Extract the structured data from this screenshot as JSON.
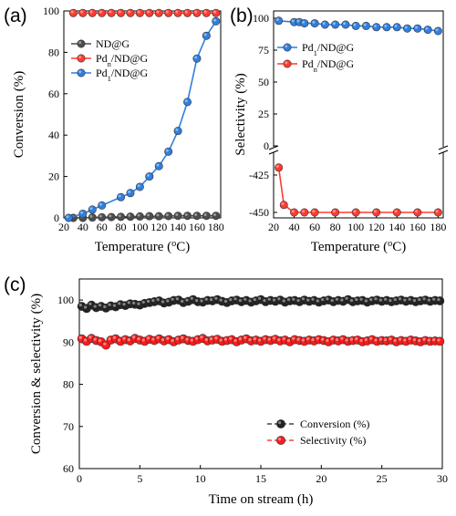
{
  "chart_data": [
    {
      "panel": "(a)",
      "type": "line",
      "xlabel": "Temperature (oC)",
      "xlabel_parts": [
        "Temperature (",
        "o",
        "C)"
      ],
      "ylabel": "Conversion (%)",
      "xlim": [
        20,
        185
      ],
      "ylim": [
        0,
        100
      ],
      "xticks": [
        20,
        40,
        60,
        80,
        100,
        120,
        140,
        160,
        180
      ],
      "yticks": [
        0,
        20,
        40,
        60,
        80,
        100
      ],
      "legend_position": "top-left",
      "series": [
        {
          "name": "ND@G",
          "legend_parts": [
            "ND@G"
          ],
          "color": "#4d4d4d",
          "x": [
            30,
            40,
            50,
            60,
            70,
            80,
            90,
            100,
            110,
            120,
            130,
            140,
            150,
            160,
            170,
            180
          ],
          "y": [
            0,
            0,
            0.2,
            0.3,
            0.4,
            0.5,
            0.6,
            0.7,
            0.8,
            0.8,
            0.9,
            1.0,
            1.0,
            1.0,
            1.0,
            1.0
          ]
        },
        {
          "name": "Pdn/ND@G",
          "legend_parts": [
            "Pd",
            "n",
            "/ND@G"
          ],
          "color": "#ff3b30",
          "x": [
            30,
            40,
            50,
            60,
            70,
            80,
            90,
            100,
            110,
            120,
            130,
            140,
            150,
            160,
            170,
            180
          ],
          "y": [
            99,
            99,
            99,
            99,
            99,
            99,
            99,
            99,
            99,
            99,
            99,
            99,
            99,
            99,
            99,
            99
          ]
        },
        {
          "name": "Pd1/ND@G",
          "legend_parts": [
            "Pd",
            "1",
            "/ND@G"
          ],
          "color": "#2f7fe0",
          "x": [
            25,
            40,
            50,
            60,
            80,
            90,
            100,
            110,
            120,
            130,
            140,
            150,
            160,
            170,
            180
          ],
          "y": [
            0,
            2,
            4,
            6,
            10,
            12,
            15,
            20,
            25,
            32,
            42,
            56,
            77,
            88,
            95
          ]
        }
      ]
    },
    {
      "panel": "(b)",
      "type": "line",
      "xlabel": "Temperature (oC)",
      "xlabel_parts": [
        "Temperature (",
        "o",
        "C)"
      ],
      "ylabel": "Selectivity (%)",
      "xlim": [
        20,
        185
      ],
      "ylim_top": [
        0,
        100
      ],
      "ylim_bottom": [
        -455,
        -415
      ],
      "axis_break": true,
      "xticks": [
        20,
        40,
        60,
        80,
        100,
        120,
        140,
        160,
        180
      ],
      "yticks": [
        100,
        75,
        50,
        25,
        0,
        -425,
        -450
      ],
      "legend_position": "upper-middle",
      "series": [
        {
          "name": "Pd1/ND@G",
          "legend_parts": [
            "Pd",
            "1",
            "/ND@G"
          ],
          "color": "#2f7fe0",
          "x": [
            25,
            40,
            45,
            50,
            60,
            70,
            80,
            90,
            100,
            110,
            120,
            130,
            140,
            150,
            160,
            170,
            180
          ],
          "y": [
            98,
            97,
            97,
            96,
            96,
            95,
            95,
            95,
            94,
            94,
            93,
            93,
            93,
            92,
            92,
            91,
            90
          ]
        },
        {
          "name": "Pdn/ND@G",
          "legend_parts": [
            "Pd",
            "n",
            "/ND@G"
          ],
          "color": "#ff3b30",
          "x": [
            25,
            30,
            40,
            50,
            60,
            80,
            100,
            120,
            140,
            160,
            180
          ],
          "y": [
            -420,
            -445,
            -450,
            -450,
            -450,
            -450,
            -450,
            -450,
            -450,
            -450,
            -450
          ]
        }
      ]
    },
    {
      "panel": "(c)",
      "type": "scatter",
      "xlabel": "Time on stream (h)",
      "ylabel": "Conversion & selectivity (%)",
      "xlim": [
        0,
        30
      ],
      "ylim": [
        60,
        105
      ],
      "xticks": [
        0,
        5,
        10,
        15,
        20,
        25,
        30
      ],
      "yticks": [
        60,
        70,
        80,
        90,
        100
      ],
      "legend_position": "bottom-right",
      "series": [
        {
          "name": "Conversion (%)",
          "legend_parts": [
            "Conversion (%)"
          ],
          "color": "#222222",
          "x": [
            0.2,
            0.6,
            1,
            1.4,
            1.8,
            2.2,
            2.6,
            3,
            3.4,
            3.8,
            4.2,
            4.6,
            5,
            5.4,
            5.8,
            6.2,
            6.6,
            7,
            7.4,
            7.8,
            8.2,
            8.6,
            9,
            9.4,
            9.8,
            10.2,
            10.6,
            11,
            11.4,
            11.8,
            12.2,
            12.6,
            13,
            13.4,
            13.8,
            14.2,
            14.6,
            15,
            15.4,
            15.8,
            16.2,
            16.6,
            17,
            17.4,
            17.8,
            18.2,
            18.6,
            19,
            19.4,
            19.8,
            20.2,
            20.6,
            21,
            21.4,
            21.8,
            22.2,
            22.6,
            23,
            23.4,
            23.8,
            24.2,
            24.6,
            25,
            25.4,
            25.8,
            26.2,
            26.6,
            27,
            27.4,
            27.8,
            28.2,
            28.6,
            29,
            29.4,
            29.8
          ],
          "y": [
            98.5,
            98,
            98.8,
            98.2,
            98.5,
            98.1,
            98.6,
            98.4,
            98.9,
            98.7,
            99.1,
            99,
            98.8,
            99.2,
            99.4,
            99.6,
            99.8,
            99.3,
            99.5,
            99.9,
            100,
            99.4,
            99.7,
            100.1,
            99.6,
            99.5,
            99.9,
            99.8,
            100.1,
            99.7,
            99.4,
            99.8,
            100,
            99.6,
            99.9,
            99.5,
            99.8,
            100.1,
            99.6,
            99.9,
            99.7,
            100,
            99.5,
            99.8,
            99.9,
            99.6,
            100,
            99.7,
            99.9,
            99.5,
            99.8,
            100,
            99.6,
            99.9,
            99.7,
            100.1,
            99.6,
            99.8,
            99.9,
            99.5,
            99.8,
            100,
            99.7,
            99.9,
            99.6,
            99.8,
            100,
            99.7,
            99.9,
            99.6,
            99.8,
            100,
            99.7,
            99.9,
            99.8
          ]
        },
        {
          "name": "Selectivity (%)",
          "legend_parts": [
            "Selectivity (%)"
          ],
          "color": "#ff1a1a",
          "x": [
            0.2,
            0.6,
            1,
            1.4,
            1.8,
            2.2,
            2.6,
            3,
            3.4,
            3.8,
            4.2,
            4.6,
            5,
            5.4,
            5.8,
            6.2,
            6.6,
            7,
            7.4,
            7.8,
            8.2,
            8.6,
            9,
            9.4,
            9.8,
            10.2,
            10.6,
            11,
            11.4,
            11.8,
            12.2,
            12.6,
            13,
            13.4,
            13.8,
            14.2,
            14.6,
            15,
            15.4,
            15.8,
            16.2,
            16.6,
            17,
            17.4,
            17.8,
            18.2,
            18.6,
            19,
            19.4,
            19.8,
            20.2,
            20.6,
            21,
            21.4,
            21.8,
            22.2,
            22.6,
            23,
            23.4,
            23.8,
            24.2,
            24.6,
            25,
            25.4,
            25.8,
            26.2,
            26.6,
            27,
            27.4,
            27.8,
            28.2,
            28.6,
            29,
            29.4,
            29.8
          ],
          "y": [
            90.8,
            90.2,
            90.9,
            90.4,
            90.1,
            89.3,
            90.5,
            90.8,
            90.2,
            90.6,
            90.3,
            90.9,
            90.5,
            90.2,
            90.7,
            90.4,
            90.8,
            90.3,
            90.6,
            90.1,
            90.5,
            90.8,
            90.4,
            90.2,
            90.6,
            90.9,
            90.3,
            90.5,
            90.7,
            90.2,
            90.4,
            90.6,
            90.1,
            90.5,
            90.8,
            90.3,
            90.5,
            90.2,
            90.6,
            90.4,
            90.7,
            90.3,
            90.5,
            90.1,
            90.6,
            90.4,
            90.2,
            90.5,
            90.3,
            90.6,
            90.4,
            90.1,
            90.5,
            90.3,
            90.6,
            90.2,
            90.4,
            90.5,
            90.1,
            90.3,
            90.6,
            90.2,
            90.4,
            90.3,
            90.5,
            90.1,
            90.4,
            90.2,
            90.5,
            90.3,
            90.1,
            90.4,
            90.2,
            90.3,
            90.2
          ]
        }
      ]
    }
  ]
}
